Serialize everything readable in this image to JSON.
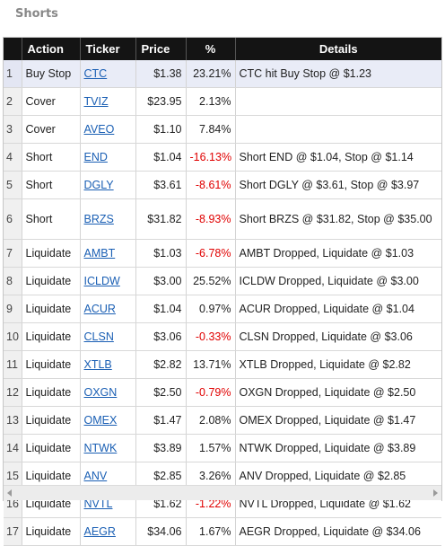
{
  "title": "Shorts",
  "columns": [
    "",
    "Action",
    "Ticker",
    "Price",
    "%",
    "Details"
  ],
  "rows": [
    {
      "num": "1",
      "action": "Buy Stop",
      "ticker": "CTC",
      "price": "$1.38",
      "pct": "23.21%",
      "details": "CTC hit Buy Stop @ $1.23",
      "neg": false,
      "selected": true
    },
    {
      "num": "2",
      "action": "Cover",
      "ticker": "TVIZ",
      "price": "$23.95",
      "pct": "2.13%",
      "details": "",
      "neg": false,
      "selected": false
    },
    {
      "num": "3",
      "action": "Cover",
      "ticker": "AVEO",
      "price": "$1.10",
      "pct": "7.84%",
      "details": "",
      "neg": false,
      "selected": false
    },
    {
      "num": "4",
      "action": "Short",
      "ticker": "END",
      "price": "$1.04",
      "pct": "-16.13%",
      "details": "Short END @ $1.04, Stop @ $1.14",
      "neg": true,
      "selected": false
    },
    {
      "num": "5",
      "action": "Short",
      "ticker": "DGLY",
      "price": "$3.61",
      "pct": "-8.61%",
      "details": "Short DGLY @ $3.61, Stop @ $3.97",
      "neg": true,
      "selected": false
    },
    {
      "num": "6",
      "action": "Short",
      "ticker": "BRZS",
      "price": "$31.82",
      "pct": "-8.93%",
      "details": "Short BRZS @ $31.82, Stop @ $35.00",
      "neg": true,
      "selected": false,
      "tall": true
    },
    {
      "num": "7",
      "action": "Liquidate",
      "ticker": "AMBT",
      "price": "$1.03",
      "pct": "-6.78%",
      "details": "AMBT Dropped, Liquidate @ $1.03",
      "neg": true,
      "selected": false
    },
    {
      "num": "8",
      "action": "Liquidate",
      "ticker": "ICLDW",
      "price": "$3.00",
      "pct": "25.52%",
      "details": "ICLDW Dropped, Liquidate @ $3.00",
      "neg": false,
      "selected": false
    },
    {
      "num": "9",
      "action": "Liquidate",
      "ticker": "ACUR",
      "price": "$1.04",
      "pct": "0.97%",
      "details": "ACUR Dropped, Liquidate @ $1.04",
      "neg": false,
      "selected": false
    },
    {
      "num": "10",
      "action": "Liquidate",
      "ticker": "CLSN",
      "price": "$3.06",
      "pct": "-0.33%",
      "details": "CLSN Dropped, Liquidate @ $3.06",
      "neg": true,
      "selected": false
    },
    {
      "num": "11",
      "action": "Liquidate",
      "ticker": "XTLB",
      "price": "$2.82",
      "pct": "13.71%",
      "details": "XTLB Dropped, Liquidate @ $2.82",
      "neg": false,
      "selected": false
    },
    {
      "num": "12",
      "action": "Liquidate",
      "ticker": "OXGN",
      "price": "$2.50",
      "pct": "-0.79%",
      "details": "OXGN Dropped, Liquidate @ $2.50",
      "neg": true,
      "selected": false
    },
    {
      "num": "13",
      "action": "Liquidate",
      "ticker": "OMEX",
      "price": "$1.47",
      "pct": "2.08%",
      "details": "OMEX Dropped, Liquidate @ $1.47",
      "neg": false,
      "selected": false
    },
    {
      "num": "14",
      "action": "Liquidate",
      "ticker": "NTWK",
      "price": "$3.89",
      "pct": "1.57%",
      "details": "NTWK Dropped, Liquidate @ $3.89",
      "neg": false,
      "selected": false
    },
    {
      "num": "15",
      "action": "Liquidate",
      "ticker": "ANV",
      "price": "$2.85",
      "pct": "3.26%",
      "details": "ANV Dropped, Liquidate @ $2.85",
      "neg": false,
      "selected": false
    },
    {
      "num": "16",
      "action": "Liquidate",
      "ticker": "NVTL",
      "price": "$1.62",
      "pct": "-1.22%",
      "details": "NVTL Dropped, Liquidate @ $1.62",
      "neg": true,
      "selected": false
    },
    {
      "num": "17",
      "action": "Liquidate",
      "ticker": "AEGR",
      "price": "$34.06",
      "pct": "1.67%",
      "details": "AEGR Dropped, Liquidate @ $34.06",
      "neg": false,
      "selected": false
    }
  ],
  "colors": {
    "negative": "#e00000",
    "link": "#1a5fb4",
    "header_bg": "#141414"
  }
}
